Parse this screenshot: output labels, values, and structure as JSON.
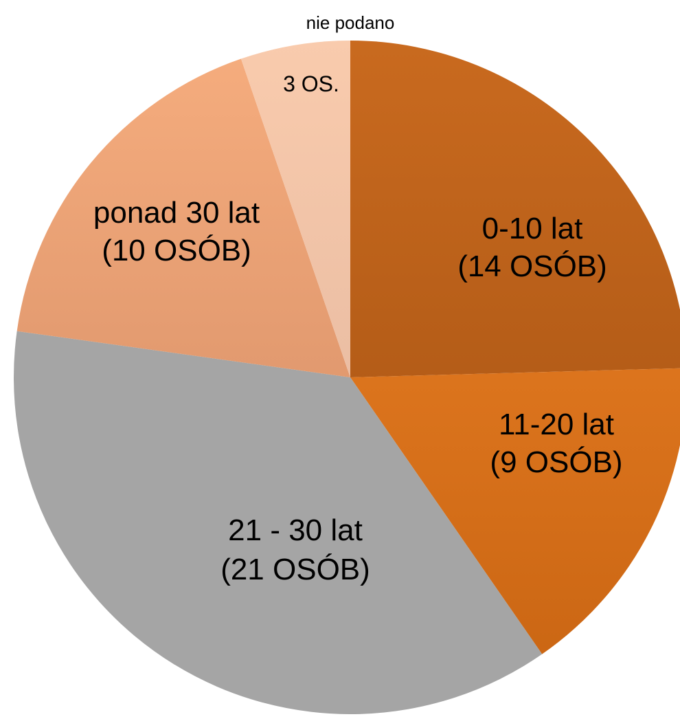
{
  "chart_data": {
    "type": "pie",
    "title": "",
    "unit": "OSÓB",
    "slices": [
      {
        "name": "0-10 lat",
        "value": 14,
        "label_lines": [
          "0-10 lat",
          "(14 OSÓB)"
        ],
        "color_top": "#c96a1f",
        "color_bottom": "#a04f10"
      },
      {
        "name": "11-20 lat",
        "value": 9,
        "label_lines": [
          "11-20 lat",
          "(9 OSÓB)"
        ],
        "color_top": "#ef8428",
        "color_bottom": "#c86412"
      },
      {
        "name": "21 - 30 lat",
        "value": 21,
        "label_lines": [
          "21 - 30 lat",
          "(21 OSÓB)"
        ],
        "color_top": "#a5a5a5",
        "color_bottom": "#a5a5a5"
      },
      {
        "name": "ponad 30 lat",
        "value": 10,
        "label_lines": [
          "ponad 30 lat",
          "(10 OSÓB)"
        ],
        "color_top": "#f6ad7e",
        "color_bottom": "#cd8660"
      },
      {
        "name": "nie podano",
        "value": 3,
        "label_lines": [
          "3 OS."
        ],
        "outside_label": "nie podano",
        "color_top": "#f9cbad",
        "color_bottom": "#ddb19a"
      }
    ]
  }
}
